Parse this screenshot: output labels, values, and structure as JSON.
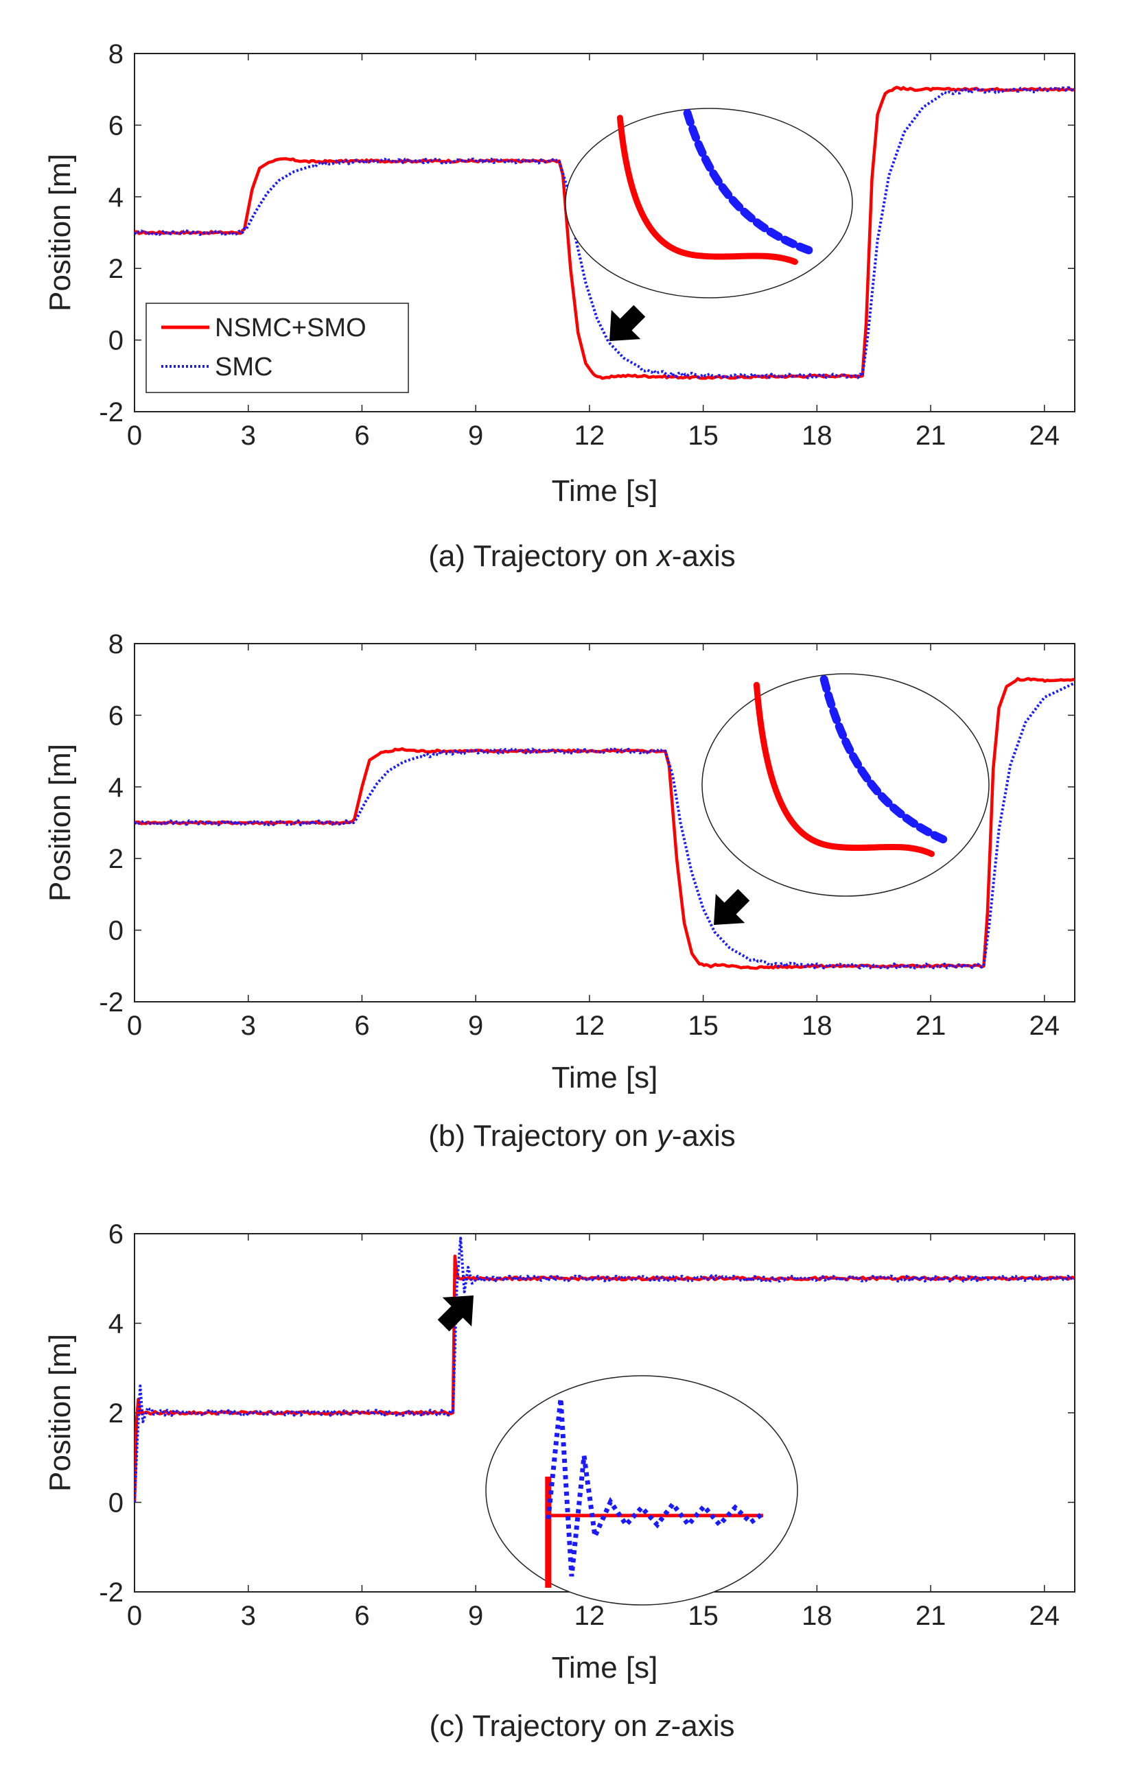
{
  "legend": {
    "series1": "NSMC+SMO",
    "series2": "SMC"
  },
  "chart_data": [
    {
      "type": "line",
      "panel": "a",
      "caption_prefix": "(a) Trajectory on ",
      "caption_axis": "x",
      "caption_suffix": "-axis",
      "xlabel": "Time  [s]",
      "ylabel": "Position [m]",
      "xlim": [
        0,
        24.8
      ],
      "ylim": [
        -2,
        8
      ],
      "xticks": [
        0,
        3,
        6,
        9,
        12,
        15,
        18,
        21,
        24
      ],
      "yticks": [
        -2,
        0,
        2,
        4,
        6,
        8
      ],
      "series": [
        {
          "name": "NSMC+SMO",
          "color": "#ff0000",
          "style": "solid",
          "x": [
            0,
            2.8,
            2.9,
            3.1,
            3.3,
            3.6,
            4.0,
            4.6,
            6,
            9,
            11.2,
            11.3,
            11.5,
            11.7,
            11.9,
            12.1,
            12.4,
            12.7,
            13.2,
            15,
            18,
            19.2,
            19.3,
            19.45,
            19.6,
            19.8,
            20.1,
            20.4,
            21,
            24.8
          ],
          "y": [
            3,
            3,
            3.1,
            4.2,
            4.8,
            5.0,
            5.05,
            4.98,
            5,
            5,
            5,
            4.6,
            2.0,
            0.2,
            -0.65,
            -0.95,
            -1.08,
            -1.0,
            -1.0,
            -1.05,
            -1.0,
            -1.0,
            0.5,
            4.5,
            6.3,
            6.9,
            7.05,
            7.0,
            7.0,
            7.0
          ]
        },
        {
          "name": "SMC",
          "color": "#1a1aff",
          "style": "dotted",
          "x": [
            0,
            2.8,
            2.95,
            3.2,
            3.5,
            3.8,
            4.2,
            4.7,
            5.3,
            6,
            9,
            11.2,
            11.4,
            11.6,
            11.9,
            12.2,
            12.5,
            12.9,
            13.4,
            14.0,
            15,
            18,
            19.2,
            19.35,
            19.6,
            19.9,
            20.3,
            20.8,
            21.3,
            22,
            24.8
          ],
          "y": [
            3,
            3,
            3.1,
            3.6,
            4.1,
            4.45,
            4.7,
            4.87,
            4.95,
            5,
            5,
            5,
            4.3,
            3.0,
            1.6,
            0.6,
            -0.05,
            -0.5,
            -0.8,
            -0.95,
            -1.0,
            -1.0,
            -1.0,
            0.2,
            2.8,
            4.6,
            5.8,
            6.5,
            6.85,
            6.95,
            7.0
          ]
        }
      ],
      "annotations": [
        "arrow pointing to transient near 12.5 s",
        "zoomed inset of NSMC+SMO vs SMC settling"
      ]
    },
    {
      "type": "line",
      "panel": "b",
      "caption_prefix": "(b) Trajectory on ",
      "caption_axis": "y",
      "caption_suffix": "-axis",
      "xlabel": "Time [s]",
      "ylabel": "Position [m]",
      "xlim": [
        0,
        24.8
      ],
      "ylim": [
        -2,
        8
      ],
      "xticks": [
        0,
        3,
        6,
        9,
        12,
        15,
        18,
        21,
        24
      ],
      "yticks": [
        -2,
        0,
        2,
        4,
        6,
        8
      ],
      "series": [
        {
          "name": "NSMC+SMO",
          "color": "#ff0000",
          "style": "solid",
          "x": [
            0,
            5.7,
            5.8,
            6.0,
            6.2,
            6.5,
            7.0,
            7.5,
            9,
            12,
            14.0,
            14.1,
            14.3,
            14.5,
            14.7,
            14.9,
            15.2,
            15.5,
            16.0,
            18,
            21,
            22.4,
            22.5,
            22.65,
            22.8,
            23.0,
            23.3,
            23.7,
            24.2,
            24.8
          ],
          "y": [
            3,
            3,
            3.1,
            4.0,
            4.75,
            4.95,
            5.05,
            5.0,
            5,
            5,
            5,
            4.6,
            2.0,
            0.2,
            -0.65,
            -0.95,
            -1.0,
            -0.95,
            -1.05,
            -1.0,
            -1.0,
            -1.0,
            0.5,
            4.5,
            6.2,
            6.8,
            7.0,
            7.0,
            6.95,
            7.0
          ]
        },
        {
          "name": "SMC",
          "color": "#1a1aff",
          "style": "dotted",
          "x": [
            0,
            5.7,
            5.85,
            6.1,
            6.4,
            6.7,
            7.1,
            7.6,
            8.2,
            9,
            12,
            14.0,
            14.2,
            14.4,
            14.7,
            15.0,
            15.3,
            15.7,
            16.2,
            16.8,
            18,
            21,
            22.4,
            22.55,
            22.8,
            23.1,
            23.5,
            24.0,
            24.8
          ],
          "y": [
            3,
            3,
            3.1,
            3.6,
            4.1,
            4.45,
            4.7,
            4.87,
            4.95,
            5,
            5,
            5,
            4.3,
            3.0,
            1.6,
            0.6,
            -0.05,
            -0.5,
            -0.8,
            -0.95,
            -1.0,
            -1.0,
            -1.0,
            0.2,
            2.8,
            4.6,
            5.8,
            6.5,
            6.9
          ]
        }
      ],
      "annotations": [
        "arrow pointing to transient near 15.5 s",
        "zoomed inset of NSMC+SMO vs SMC settling"
      ]
    },
    {
      "type": "line",
      "panel": "c",
      "caption_prefix": "(c) Trajectory on ",
      "caption_axis": "z",
      "caption_suffix": "-axis",
      "xlabel": "Time [s]",
      "ylabel": "Position [m]",
      "xlim": [
        0,
        24.8
      ],
      "ylim": [
        -2,
        6
      ],
      "xticks": [
        0,
        3,
        6,
        9,
        12,
        15,
        18,
        21,
        24
      ],
      "yticks": [
        -2,
        0,
        2,
        4,
        6
      ],
      "series": [
        {
          "name": "NSMC+SMO",
          "color": "#ff0000",
          "style": "solid",
          "x": [
            0,
            0.05,
            0.1,
            0.15,
            0.3,
            8.4,
            8.45,
            8.5,
            8.55,
            8.7,
            24.8
          ],
          "y": [
            0,
            1.8,
            2.3,
            2.0,
            2.0,
            2.0,
            5.5,
            5.1,
            5.0,
            5.0,
            5.0
          ]
        },
        {
          "name": "SMC",
          "color": "#1a1aff",
          "style": "dotted",
          "x": [
            0,
            0.08,
            0.15,
            0.22,
            0.35,
            0.5,
            8.4,
            8.5,
            8.6,
            8.7,
            8.8,
            8.9,
            9.05,
            24.8
          ],
          "y": [
            0,
            1.5,
            2.6,
            1.8,
            2.1,
            2.0,
            2.0,
            4.8,
            5.9,
            4.7,
            5.25,
            4.9,
            5.0,
            5.0
          ]
        }
      ],
      "annotations": [
        "arrow pointing to overshoot near 8.6 s",
        "zoomed inset of NSMC+SMO vs SMC overshoot"
      ]
    }
  ]
}
